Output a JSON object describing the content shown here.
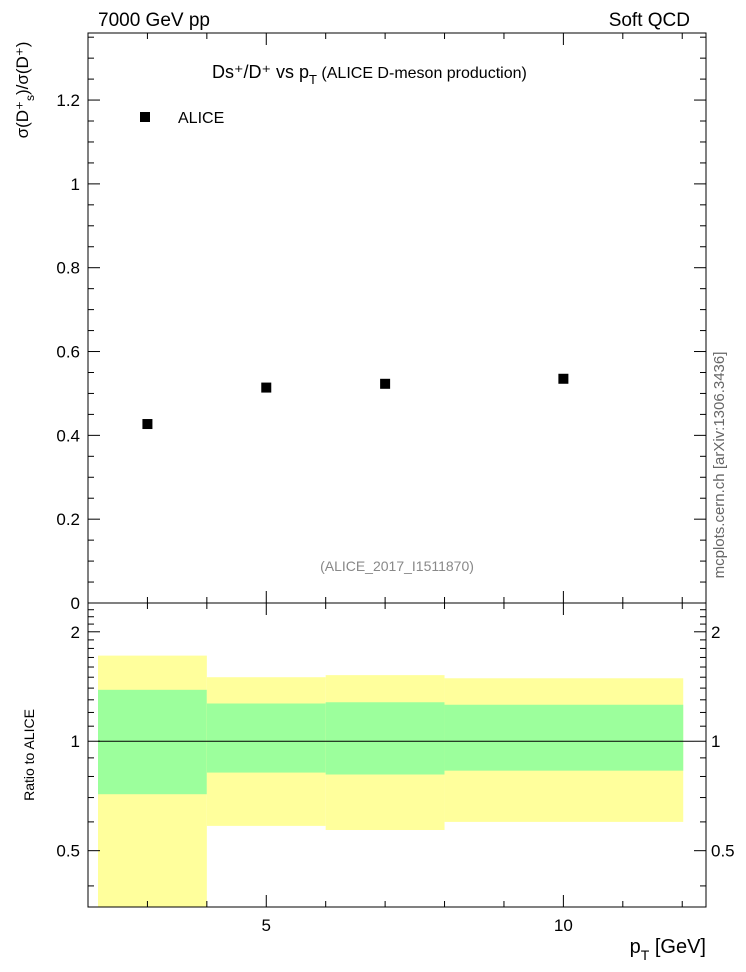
{
  "header": {
    "left": "7000 GeV pp",
    "right": "Soft QCD"
  },
  "side_label": "mcplots.cern.ch [arXiv:1306.3436]",
  "chart_data": [
    {
      "type": "scatter",
      "title": "Ds⁺/D⁺ vs p",
      "title_sub": "T",
      "title_suffix": " (ALICE D-meson production)",
      "ylabel": "σ(D⁺",
      "ylabel_sub": "s",
      "ylabel_suffix": ")/σ(D⁺)",
      "analysis_tag": "(ALICE_2017_I1511870)",
      "xlim": [
        2,
        12.4
      ],
      "ylim": [
        0,
        1.36
      ],
      "y_ticks": [
        0,
        0.2,
        0.4,
        0.6,
        0.8,
        1.0,
        1.2
      ],
      "y_tick_labels": [
        "0",
        "0.2",
        "0.4",
        "0.6",
        "0.8",
        "1",
        "1.2"
      ],
      "legend_placement": "top-left",
      "series": [
        {
          "name": "ALICE",
          "color": "#000000",
          "marker": "square",
          "x": [
            3.0,
            5.0,
            7.0,
            10.0
          ],
          "y": [
            0.427,
            0.514,
            0.523,
            0.535
          ]
        }
      ]
    },
    {
      "type": "area",
      "ylabel": "Ratio to ALICE",
      "xlabel": "p",
      "xlabel_sub": "T",
      "xlabel_suffix": " [GeV]",
      "xlim": [
        2,
        12.4
      ],
      "ylim": [
        0.35,
        2.4
      ],
      "y_ticks": [
        0.5,
        1.0,
        2.0
      ],
      "y_tick_labels": [
        "0.5",
        "1",
        "2"
      ],
      "x_ticks": [
        5,
        10
      ],
      "x_tick_labels": [
        "5",
        "10"
      ],
      "reference_line": 1.0,
      "bins": [
        {
          "x_low": 2,
          "x_high": 4,
          "inner_low": 0.715,
          "inner_high": 1.385,
          "outer_low": 0.35,
          "outer_high": 1.72
        },
        {
          "x_low": 4,
          "x_high": 6,
          "inner_low": 0.82,
          "inner_high": 1.27,
          "outer_low": 0.585,
          "outer_high": 1.5
        },
        {
          "x_low": 6,
          "x_high": 8,
          "inner_low": 0.81,
          "inner_high": 1.28,
          "outer_low": 0.57,
          "outer_high": 1.52
        },
        {
          "x_low": 8,
          "x_high": 12,
          "inner_low": 0.83,
          "inner_high": 1.26,
          "outer_low": 0.6,
          "outer_high": 1.49
        }
      ],
      "colors": {
        "inner": "#9cff9c",
        "outer": "#ffff9c",
        "line": "#000000"
      }
    }
  ]
}
